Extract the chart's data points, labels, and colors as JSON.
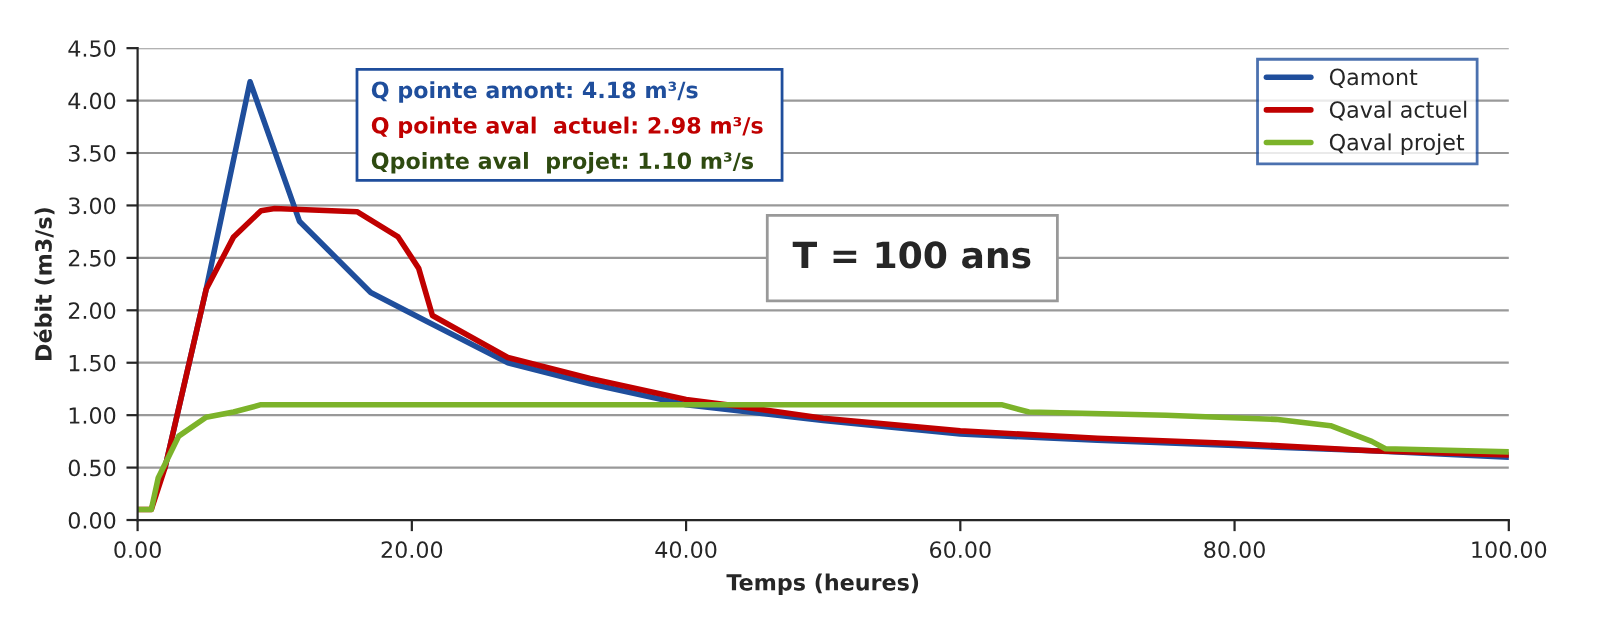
{
  "chart_data": {
    "type": "line",
    "xlabel": "Temps (heures)",
    "ylabel": "Débit (m3/s)",
    "xlim": [
      0,
      100
    ],
    "xticks": [
      {
        "value": 0,
        "label": "0.00"
      },
      {
        "value": 20,
        "label": "20.00"
      },
      {
        "value": 40,
        "label": "40.00"
      },
      {
        "value": 60,
        "label": "60.00"
      },
      {
        "value": 80,
        "label": "80.00"
      },
      {
        "value": 100,
        "label": "100.00"
      }
    ],
    "ylim": [
      0,
      4.5
    ],
    "yticks": [
      {
        "value": 0,
        "label": "0.00"
      },
      {
        "value": 0.5,
        "label": "0.50"
      },
      {
        "value": 1,
        "label": "1.00"
      },
      {
        "value": 1.5,
        "label": "1.50"
      },
      {
        "value": 2,
        "label": "2.00"
      },
      {
        "value": 2.5,
        "label": "2.50"
      },
      {
        "value": 3,
        "label": "3.00"
      },
      {
        "value": 3.5,
        "label": "3.50"
      },
      {
        "value": 4,
        "label": "4.00"
      },
      {
        "value": 4.5,
        "label": "4.50"
      }
    ],
    "grid": "y",
    "legend": "top right",
    "marker": "none",
    "line_style": "solid",
    "series": [
      {
        "name": "Qamont",
        "color": "#1f4e9c",
        "x": [
          2,
          5,
          8.2,
          11.8,
          17,
          21,
          27,
          33,
          40,
          50,
          60,
          70,
          80,
          90,
          100
        ],
        "values": [
          0.5,
          2.2,
          4.18,
          2.85,
          2.17,
          1.9,
          1.5,
          1.3,
          1.1,
          0.95,
          0.82,
          0.76,
          0.71,
          0.66,
          0.6
        ]
      },
      {
        "name": "Qaval actuel",
        "color": "#c00000",
        "x": [
          0,
          1,
          2,
          5,
          7,
          9,
          10,
          16,
          19,
          20.5,
          21.5,
          27,
          33,
          40,
          43,
          50,
          60,
          70,
          80,
          90,
          100
        ],
        "values": [
          0.1,
          0.1,
          0.5,
          2.2,
          2.7,
          2.95,
          2.97,
          2.94,
          2.7,
          2.4,
          1.95,
          1.55,
          1.35,
          1.15,
          1.1,
          0.97,
          0.85,
          0.78,
          0.73,
          0.66,
          0.62
        ]
      },
      {
        "name": "Qaval projet",
        "color": "#7cb32a",
        "x": [
          0,
          1,
          1.5,
          3,
          5,
          7,
          9,
          15,
          20,
          40,
          55,
          63,
          65,
          75,
          83,
          87,
          90,
          91,
          100
        ],
        "values": [
          0.1,
          0.1,
          0.4,
          0.8,
          0.98,
          1.03,
          1.1,
          1.1,
          1.1,
          1.1,
          1.1,
          1.1,
          1.03,
          1.0,
          0.96,
          0.9,
          0.75,
          0.68,
          0.65
        ]
      }
    ],
    "annotations": [
      "Q pointe amont: 4.18 m³/s",
      "Q pointe aval  actuel: 2.98 m³/s",
      "Qpointe aval  projet: 1.10 m³/s",
      "T = 100 ans"
    ]
  }
}
